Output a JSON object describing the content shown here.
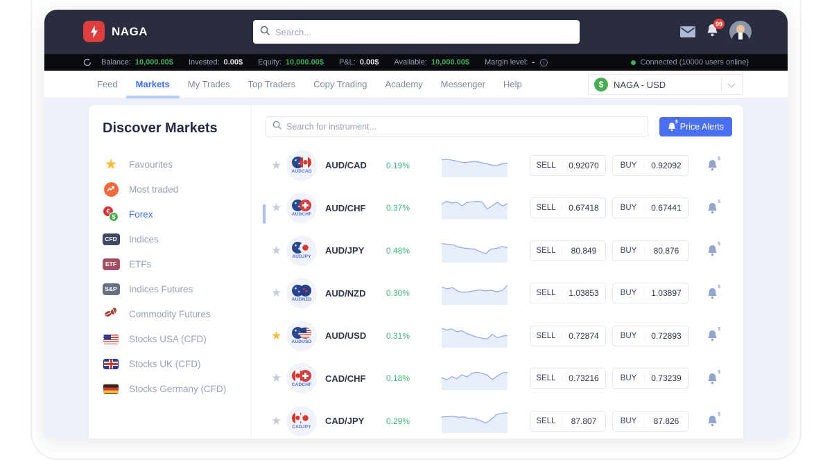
{
  "topbar": {
    "brand": "NAGA",
    "search_placeholder": "Search...",
    "notification_count": "99"
  },
  "statusbar": {
    "items": [
      {
        "label": "Balance:",
        "value": "10,000.00$",
        "green": true,
        "info": false
      },
      {
        "label": "Invested:",
        "value": "0.00$",
        "green": false,
        "info": false
      },
      {
        "label": "Equity:",
        "value": "10,000.00$",
        "green": true,
        "info": false
      },
      {
        "label": "P&L:",
        "value": "0.00$",
        "green": false,
        "info": false
      },
      {
        "label": "Available:",
        "value": "10,000.00$",
        "green": true,
        "info": false
      },
      {
        "label": "Margin level:",
        "value": "-",
        "green": false,
        "info": true
      }
    ],
    "connection_status": "Connected (10000 users online)"
  },
  "nav": {
    "tabs": [
      {
        "label": "Feed",
        "active": false
      },
      {
        "label": "Markets",
        "active": true
      },
      {
        "label": "My Trades",
        "active": false
      },
      {
        "label": "Top Traders",
        "active": false
      },
      {
        "label": "Copy Trading",
        "active": false
      },
      {
        "label": "Academy",
        "active": false
      },
      {
        "label": "Messenger",
        "active": false
      },
      {
        "label": "Help",
        "active": false
      }
    ],
    "account_selector": "NAGA - USD"
  },
  "sidebar": {
    "title": "Discover Markets",
    "items": [
      {
        "label": "Favourites",
        "icon": "star-icon",
        "active": false
      },
      {
        "label": "Most traded",
        "icon": "trending-up-icon",
        "active": false
      },
      {
        "label": "Forex",
        "icon": "currency-pair-icon",
        "active": true
      },
      {
        "label": "Indices",
        "icon": "cfd-badge",
        "badge": "CFD",
        "active": false
      },
      {
        "label": "ETFs",
        "icon": "etf-badge",
        "badge": "ETF",
        "active": false
      },
      {
        "label": "Indices Futures",
        "icon": "sp-badge",
        "badge": "S&P",
        "active": false
      },
      {
        "label": "Commodity Futures",
        "icon": "coffee-beans-icon",
        "active": false
      },
      {
        "label": "Stocks USA (CFD)",
        "icon": "flag-us-icon",
        "active": false
      },
      {
        "label": "Stocks UK (CFD)",
        "icon": "flag-uk-icon",
        "active": false
      },
      {
        "label": "Stocks Germany (CFD)",
        "icon": "flag-de-icon",
        "active": false
      }
    ]
  },
  "market": {
    "search_placeholder": "Search for instrument...",
    "price_alerts_label": "Price Alerts",
    "sell_label": "SELL",
    "buy_label": "BUY",
    "rows": [
      {
        "symbol": "AUD/CAD",
        "code": "AUDCAD",
        "change": "0.19%",
        "sell": "0.92070",
        "buy": "0.92092",
        "favourite": false,
        "flags": [
          "au",
          "ca"
        ],
        "sparkline": [
          0.3,
          0.26,
          0.32,
          0.38,
          0.45,
          0.42,
          0.38,
          0.44,
          0.5,
          0.58,
          0.62,
          0.52,
          0.48
        ]
      },
      {
        "symbol": "AUD/CHF",
        "code": "AUDCHF",
        "change": "0.37%",
        "sell": "0.67418",
        "buy": "0.67441",
        "favourite": false,
        "flags": [
          "au",
          "ch"
        ],
        "sparkline": [
          0.4,
          0.25,
          0.35,
          0.3,
          0.5,
          0.32,
          0.28,
          0.24,
          0.3,
          0.68,
          0.5,
          0.3,
          0.52,
          0.38
        ]
      },
      {
        "symbol": "AUD/JPY",
        "code": "AUDJPY",
        "change": "0.48%",
        "sell": "80.849",
        "buy": "80.876",
        "favourite": false,
        "flags": [
          "au",
          "jp"
        ],
        "sparkline": [
          0.22,
          0.25,
          0.28,
          0.4,
          0.46,
          0.5,
          0.52,
          0.66,
          0.78,
          0.52,
          0.48,
          0.38,
          0.44
        ]
      },
      {
        "symbol": "AUD/NZD",
        "code": "AUDNZD",
        "change": "0.30%",
        "sell": "1.03853",
        "buy": "1.03897",
        "favourite": false,
        "flags": [
          "au",
          "nz"
        ],
        "sparkline": [
          0.28,
          0.38,
          0.32,
          0.52,
          0.58,
          0.54,
          0.48,
          0.44,
          0.5,
          0.46,
          0.54,
          0.48,
          0.18
        ]
      },
      {
        "symbol": "AUD/USD",
        "code": "AUDUSD",
        "change": "0.31%",
        "sell": "0.72874",
        "buy": "0.72893",
        "favourite": true,
        "flags": [
          "au",
          "us"
        ],
        "sparkline": [
          0.18,
          0.28,
          0.22,
          0.38,
          0.32,
          0.48,
          0.58,
          0.68,
          0.74,
          0.78,
          0.52,
          0.72,
          0.62,
          0.58
        ]
      },
      {
        "symbol": "CAD/CHF",
        "code": "CADCHF",
        "change": "0.18%",
        "sell": "0.73216",
        "buy": "0.73239",
        "favourite": false,
        "flags": [
          "ca",
          "ch"
        ],
        "sparkline": [
          0.58,
          0.7,
          0.52,
          0.64,
          0.42,
          0.54,
          0.34,
          0.28,
          0.34,
          0.44,
          0.68,
          0.48,
          0.32,
          0.28
        ]
      },
      {
        "symbol": "CAD/JPY",
        "code": "CADJPY",
        "change": "0.29%",
        "sell": "87.807",
        "buy": "87.826",
        "favourite": false,
        "flags": [
          "ca",
          "jp"
        ],
        "sparkline": [
          0.38,
          0.36,
          0.34,
          0.4,
          0.38,
          0.46,
          0.48,
          0.58,
          0.72,
          0.52,
          0.24,
          0.18,
          0.14
        ]
      }
    ]
  },
  "glyphs": {
    "star": "★",
    "euro": "€",
    "dollar": "$",
    "info": "i"
  },
  "colors": {
    "accent_blue": "#3d6deb",
    "button_blue": "#4a6ff0",
    "positive_green": "#3cb878",
    "money_green": "#43b05c",
    "navbar_bg": "#2a2d3d",
    "statusbar_bg": "#0a0b10",
    "sparkline_line": "#8da8e6",
    "sparkline_fill": "#e7edfb",
    "favourite_gold": "#f6bc3e",
    "logo_red": "#df3e3e",
    "badge_red": "#e2453d"
  }
}
